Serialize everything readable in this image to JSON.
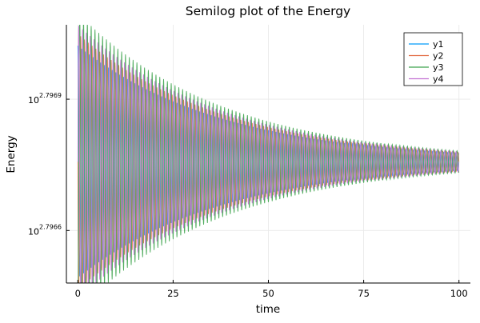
{
  "chart_data": {
    "type": "line",
    "title": "Semilog plot of the Energy",
    "xlabel": "time",
    "ylabel": "Energy",
    "yscale": "log10",
    "xlim": [
      -3,
      103
    ],
    "ylim_exponent": [
      2.79648,
      2.79707
    ],
    "x_ticks": [
      0,
      25,
      50,
      75,
      100
    ],
    "x_tick_labels": [
      "0",
      "25",
      "50",
      "75",
      "100"
    ],
    "y_ticks_exponent": [
      2.7966,
      2.7969
    ],
    "y_tick_labels": [
      {
        "base": "10",
        "exponent": "2.7966"
      },
      {
        "base": "10",
        "exponent": "2.7969"
      }
    ],
    "grid": true,
    "legend_position": "top-right",
    "oscillation": {
      "center_exponent": 2.796757,
      "initial_amplitude_exponent": 0.00034,
      "final_amplitude_exponent": 2.5e-05,
      "cycles_over_range": 100
    },
    "series": [
      {
        "name": "y1",
        "color": "#009AFA",
        "amplitude_scale": 0.78,
        "phase": 0.0
      },
      {
        "name": "y2",
        "color": "#E36F47",
        "amplitude_scale": 0.86,
        "phase": 1.57
      },
      {
        "name": "y3",
        "color": "#3EA44E",
        "amplitude_scale": 1.0,
        "phase": 3.14
      },
      {
        "name": "y4",
        "color": "#C271D2",
        "amplitude_scale": 0.92,
        "phase": 4.71
      }
    ]
  }
}
